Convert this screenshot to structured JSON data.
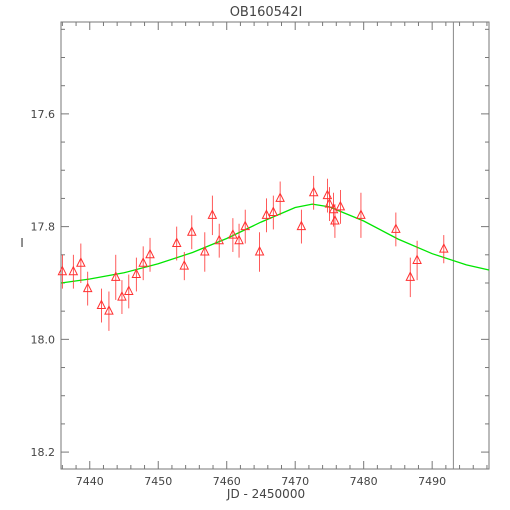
{
  "chart_data": {
    "type": "scatter",
    "title": "OB160542I",
    "xlabel": "JD - 2450000",
    "ylabel": "I",
    "xlim": [
      7435.8,
      7498.3
    ],
    "ylim": [
      17.437,
      18.23
    ],
    "y_inverted": true,
    "x_ticks": [
      7440,
      7450,
      7460,
      7470,
      7480,
      7490
    ],
    "x_tick_labels": [
      "7440",
      "7450",
      "7460",
      "7470",
      "7480",
      "7490"
    ],
    "y_ticks": [
      17.6,
      17.8,
      18.0,
      18.2
    ],
    "y_tick_labels": [
      "17.6",
      "17.8",
      "18.0",
      "18.2"
    ],
    "vertical_line_x": 7493.1,
    "colors": {
      "points": "#ff3030",
      "model": "#00e600",
      "axes": "#777777",
      "marker_line": "#888888"
    },
    "series": [
      {
        "kind": "points",
        "marker": "triangle",
        "points": [
          {
            "x": 7436.0,
            "y": 17.88,
            "err": 0.03
          },
          {
            "x": 7437.6,
            "y": 17.88,
            "err": 0.03
          },
          {
            "x": 7438.7,
            "y": 17.865,
            "err": 0.035
          },
          {
            "x": 7439.7,
            "y": 17.91,
            "err": 0.03
          },
          {
            "x": 7441.7,
            "y": 17.94,
            "err": 0.03
          },
          {
            "x": 7442.8,
            "y": 17.95,
            "err": 0.035
          },
          {
            "x": 7443.8,
            "y": 17.89,
            "err": 0.04
          },
          {
            "x": 7444.7,
            "y": 17.925,
            "err": 0.03
          },
          {
            "x": 7445.7,
            "y": 17.915,
            "err": 0.03
          },
          {
            "x": 7446.8,
            "y": 17.885,
            "err": 0.03
          },
          {
            "x": 7447.8,
            "y": 17.865,
            "err": 0.03
          },
          {
            "x": 7448.8,
            "y": 17.85,
            "err": 0.03
          },
          {
            "x": 7452.7,
            "y": 17.83,
            "err": 0.03
          },
          {
            "x": 7453.8,
            "y": 17.87,
            "err": 0.025
          },
          {
            "x": 7454.9,
            "y": 17.81,
            "err": 0.03
          },
          {
            "x": 7456.8,
            "y": 17.845,
            "err": 0.035
          },
          {
            "x": 7457.9,
            "y": 17.78,
            "err": 0.035
          },
          {
            "x": 7458.9,
            "y": 17.825,
            "err": 0.03
          },
          {
            "x": 7460.9,
            "y": 17.815,
            "err": 0.03
          },
          {
            "x": 7461.8,
            "y": 17.825,
            "err": 0.03
          },
          {
            "x": 7462.7,
            "y": 17.8,
            "err": 0.03
          },
          {
            "x": 7464.8,
            "y": 17.845,
            "err": 0.035
          },
          {
            "x": 7465.8,
            "y": 17.78,
            "err": 0.03
          },
          {
            "x": 7466.8,
            "y": 17.775,
            "err": 0.03
          },
          {
            "x": 7467.8,
            "y": 17.75,
            "err": 0.03
          },
          {
            "x": 7470.9,
            "y": 17.8,
            "err": 0.03
          },
          {
            "x": 7472.7,
            "y": 17.74,
            "err": 0.03
          },
          {
            "x": 7474.7,
            "y": 17.745,
            "err": 0.03
          },
          {
            "x": 7475.0,
            "y": 17.76,
            "err": 0.03
          },
          {
            "x": 7475.6,
            "y": 17.77,
            "err": 0.03
          },
          {
            "x": 7475.8,
            "y": 17.79,
            "err": 0.03
          },
          {
            "x": 7476.6,
            "y": 17.765,
            "err": 0.03
          },
          {
            "x": 7479.6,
            "y": 17.78,
            "err": 0.04
          },
          {
            "x": 7484.7,
            "y": 17.805,
            "err": 0.03
          },
          {
            "x": 7486.8,
            "y": 17.89,
            "err": 0.035
          },
          {
            "x": 7487.8,
            "y": 17.86,
            "err": 0.035
          },
          {
            "x": 7491.7,
            "y": 17.84,
            "err": 0.025
          }
        ]
      },
      {
        "kind": "line",
        "x": [
          7435.8,
          7440,
          7445,
          7450,
          7455,
          7460,
          7465,
          7470,
          7472.5,
          7475,
          7480,
          7485,
          7490,
          7495,
          7498.3
        ],
        "y": [
          17.9,
          17.893,
          17.882,
          17.866,
          17.846,
          17.821,
          17.792,
          17.766,
          17.76,
          17.765,
          17.79,
          17.822,
          17.848,
          17.868,
          17.877
        ]
      }
    ]
  }
}
